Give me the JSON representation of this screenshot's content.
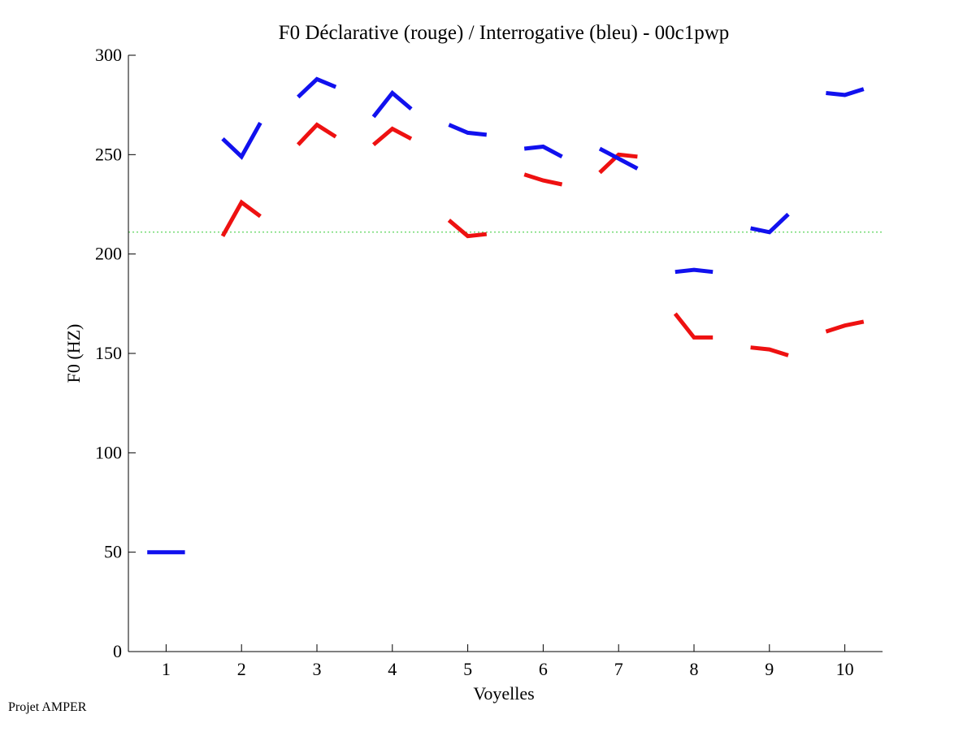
{
  "footer": {
    "credit": "Projet AMPER"
  },
  "chart_data": {
    "type": "line",
    "title": "F0 Déclarative (rouge) / Interrogative (bleu) - 00c1pwp",
    "xlabel": "Voyelles",
    "ylabel": "F0 (HZ)",
    "xlim": [
      0.5,
      10.5
    ],
    "ylim": [
      0,
      300
    ],
    "xticks": [
      1,
      2,
      3,
      4,
      5,
      6,
      7,
      8,
      9,
      10
    ],
    "yticks": [
      0,
      50,
      100,
      150,
      200,
      250,
      300
    ],
    "reference_line": {
      "y": 211,
      "color": "#33cc33",
      "style": "dotted"
    },
    "series": [
      {
        "name": "Déclarative (rouge)",
        "color": "#ee1111",
        "segments": [
          {
            "vowel": 2,
            "x": [
              1.75,
              2.0,
              2.25
            ],
            "y": [
              209,
              226,
              219
            ]
          },
          {
            "vowel": 3,
            "x": [
              2.75,
              3.0,
              3.25
            ],
            "y": [
              255,
              265,
              259
            ]
          },
          {
            "vowel": 4,
            "x": [
              3.75,
              4.0,
              4.25
            ],
            "y": [
              255,
              263,
              258
            ]
          },
          {
            "vowel": 5,
            "x": [
              4.75,
              5.0,
              5.25
            ],
            "y": [
              217,
              209,
              210
            ]
          },
          {
            "vowel": 6,
            "x": [
              5.75,
              6.0,
              6.25
            ],
            "y": [
              240,
              237,
              235
            ]
          },
          {
            "vowel": 7,
            "x": [
              6.75,
              7.0,
              7.25
            ],
            "y": [
              241,
              250,
              249
            ]
          },
          {
            "vowel": 8,
            "x": [
              7.75,
              8.0,
              8.25
            ],
            "y": [
              170,
              158,
              158
            ]
          },
          {
            "vowel": 9,
            "x": [
              8.75,
              9.0,
              9.25
            ],
            "y": [
              153,
              152,
              149
            ]
          },
          {
            "vowel": 10,
            "x": [
              9.75,
              10.0,
              10.25
            ],
            "y": [
              161,
              164,
              166
            ]
          }
        ]
      },
      {
        "name": "Interrogative (bleu)",
        "color": "#1111ee",
        "segments": [
          {
            "vowel": 1,
            "x": [
              0.75,
              1.0,
              1.25
            ],
            "y": [
              50,
              50,
              50
            ]
          },
          {
            "vowel": 2,
            "x": [
              1.75,
              2.0,
              2.25
            ],
            "y": [
              258,
              249,
              266
            ]
          },
          {
            "vowel": 3,
            "x": [
              2.75,
              3.0,
              3.25
            ],
            "y": [
              279,
              288,
              284
            ]
          },
          {
            "vowel": 4,
            "x": [
              3.75,
              4.0,
              4.25
            ],
            "y": [
              269,
              281,
              273
            ]
          },
          {
            "vowel": 5,
            "x": [
              4.75,
              5.0,
              5.25
            ],
            "y": [
              265,
              261,
              260
            ]
          },
          {
            "vowel": 6,
            "x": [
              5.75,
              6.0,
              6.25
            ],
            "y": [
              253,
              254,
              249
            ]
          },
          {
            "vowel": 7,
            "x": [
              6.75,
              7.0,
              7.25
            ],
            "y": [
              253,
              248,
              243
            ]
          },
          {
            "vowel": 8,
            "x": [
              7.75,
              8.0,
              8.25
            ],
            "y": [
              191,
              192,
              191
            ]
          },
          {
            "vowel": 9,
            "x": [
              8.75,
              9.0,
              9.25
            ],
            "y": [
              213,
              211,
              220
            ]
          },
          {
            "vowel": 10,
            "x": [
              9.75,
              10.0,
              10.25
            ],
            "y": [
              281,
              280,
              283
            ]
          }
        ]
      }
    ]
  }
}
